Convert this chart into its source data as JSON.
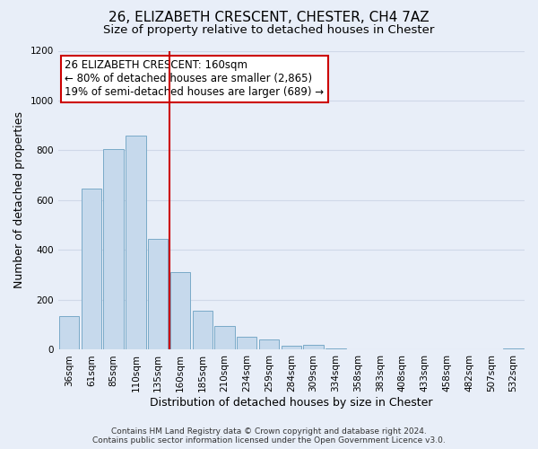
{
  "title": "26, ELIZABETH CRESCENT, CHESTER, CH4 7AZ",
  "subtitle": "Size of property relative to detached houses in Chester",
  "xlabel": "Distribution of detached houses by size in Chester",
  "ylabel": "Number of detached properties",
  "categories": [
    "36sqm",
    "61sqm",
    "85sqm",
    "110sqm",
    "135sqm",
    "160sqm",
    "185sqm",
    "210sqm",
    "234sqm",
    "259sqm",
    "284sqm",
    "309sqm",
    "334sqm",
    "358sqm",
    "383sqm",
    "408sqm",
    "433sqm",
    "458sqm",
    "482sqm",
    "507sqm",
    "532sqm"
  ],
  "values": [
    135,
    645,
    805,
    860,
    445,
    310,
    158,
    95,
    52,
    42,
    15,
    20,
    5,
    2,
    0,
    0,
    0,
    0,
    0,
    0,
    5
  ],
  "bar_color": "#c6d9ec",
  "bar_edge_color": "#7aaac8",
  "vline_color": "#cc0000",
  "ylim": [
    0,
    1200
  ],
  "yticks": [
    0,
    200,
    400,
    600,
    800,
    1000,
    1200
  ],
  "annotation_lines": [
    "26 ELIZABETH CRESCENT: 160sqm",
    "← 80% of detached houses are smaller (2,865)",
    "19% of semi-detached houses are larger (689) →"
  ],
  "annotation_box_facecolor": "#ffffff",
  "annotation_box_edgecolor": "#cc0000",
  "footer_line1": "Contains HM Land Registry data © Crown copyright and database right 2024.",
  "footer_line2": "Contains public sector information licensed under the Open Government Licence v3.0.",
  "background_color": "#e8eef8",
  "grid_color": "#d0d8e8",
  "title_fontsize": 11,
  "subtitle_fontsize": 9.5,
  "axis_label_fontsize": 9,
  "tick_fontsize": 7.5,
  "annotation_fontsize": 8.5,
  "footer_fontsize": 6.5
}
